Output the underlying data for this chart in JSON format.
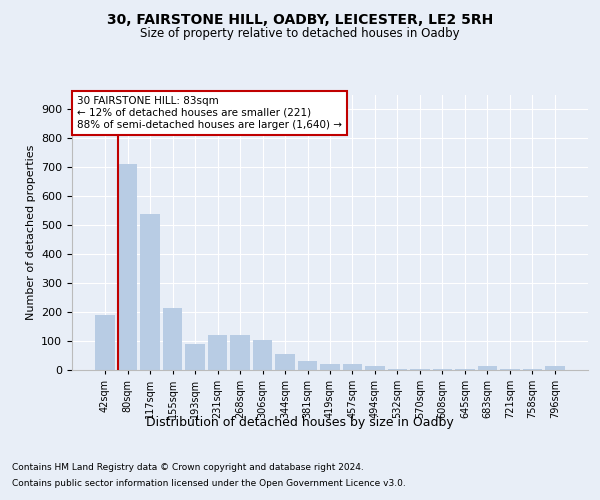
{
  "title1": "30, FAIRSTONE HILL, OADBY, LEICESTER, LE2 5RH",
  "title2": "Size of property relative to detached houses in Oadby",
  "xlabel": "Distribution of detached houses by size in Oadby",
  "ylabel": "Number of detached properties",
  "categories": [
    "42sqm",
    "80sqm",
    "117sqm",
    "155sqm",
    "193sqm",
    "231sqm",
    "268sqm",
    "306sqm",
    "344sqm",
    "381sqm",
    "419sqm",
    "457sqm",
    "494sqm",
    "532sqm",
    "570sqm",
    "608sqm",
    "645sqm",
    "683sqm",
    "721sqm",
    "758sqm",
    "796sqm"
  ],
  "values": [
    190,
    710,
    540,
    215,
    90,
    120,
    120,
    105,
    55,
    30,
    20,
    20,
    15,
    5,
    5,
    5,
    5,
    15,
    5,
    5,
    15
  ],
  "highlight_index": 1,
  "bar_color": "#b8cce4",
  "highlight_color": "#c00000",
  "ylim": [
    0,
    950
  ],
  "yticks": [
    0,
    100,
    200,
    300,
    400,
    500,
    600,
    700,
    800,
    900
  ],
  "annotation_text": "30 FAIRSTONE HILL: 83sqm\n← 12% of detached houses are smaller (221)\n88% of semi-detached houses are larger (1,640) →",
  "annotation_box_color": "#c00000",
  "footnote1": "Contains HM Land Registry data © Crown copyright and database right 2024.",
  "footnote2": "Contains public sector information licensed under the Open Government Licence v3.0.",
  "bg_color": "#e8eef7",
  "plot_bg_color": "#e8eef7"
}
